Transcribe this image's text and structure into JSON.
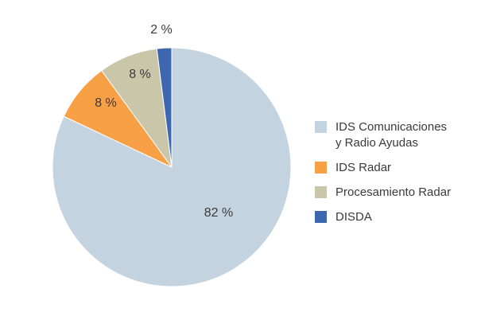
{
  "chart_data": {
    "type": "pie",
    "title": "",
    "start_angle_deg": 0,
    "direction": "clockwise",
    "legend_position": "right",
    "slices": [
      {
        "name": "IDS Comunicaciones\ny Radio Ayudas",
        "value": 82,
        "label": "82 %",
        "color": "#c3d3df"
      },
      {
        "name": "IDS Radar",
        "value": 8,
        "label": "8 %",
        "color": "#f7a046"
      },
      {
        "name": "Procesamiento Radar",
        "value": 8,
        "label": "8 %",
        "color": "#c9c6aa"
      },
      {
        "name": "DISDA",
        "value": 2,
        "label": "2 %",
        "color": "#3d67b1"
      }
    ]
  }
}
